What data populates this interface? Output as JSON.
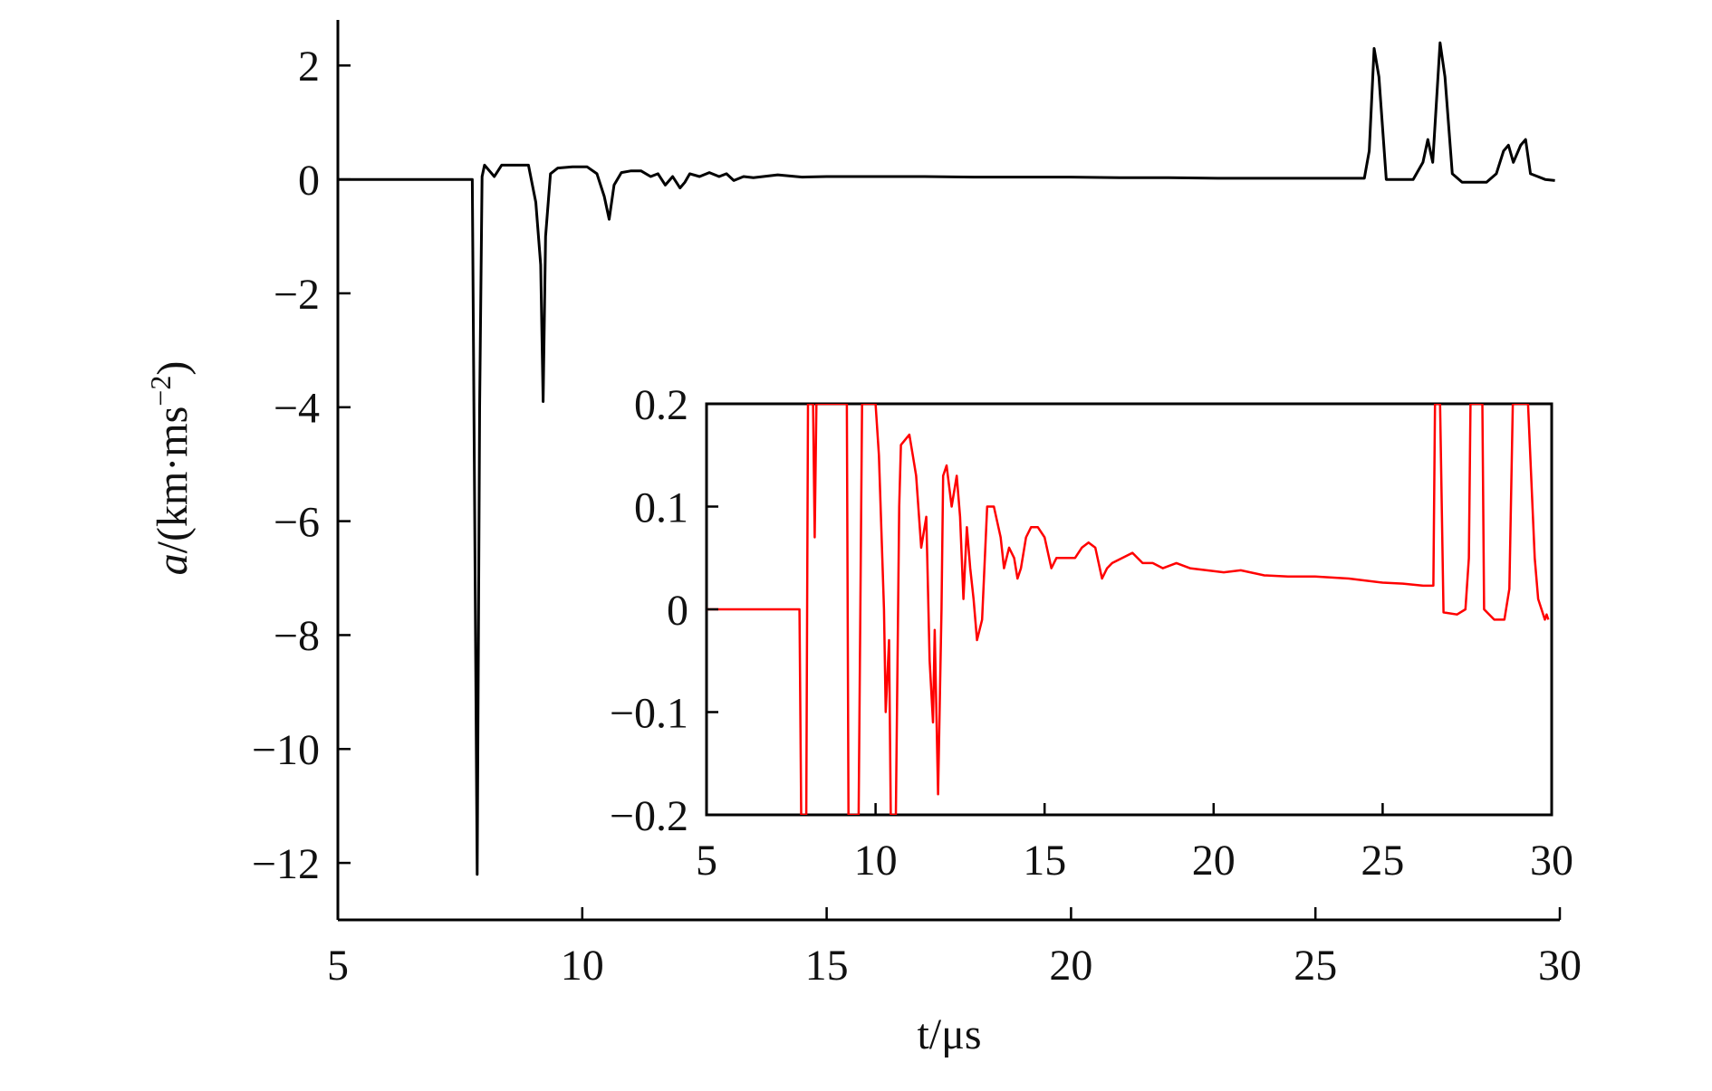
{
  "chart_data": [
    {
      "id": "main",
      "type": "line",
      "title": "",
      "xlabel": "t/μs",
      "ylabel": {
        "italic": "a",
        "rest": "/(km·ms",
        "sup": "−2",
        "close": ")"
      },
      "xlim": [
        5,
        30
      ],
      "ylim": [
        -13,
        2.8
      ],
      "xticks": [
        5,
        10,
        15,
        20,
        25,
        30
      ],
      "xtick_labels": [
        "5",
        "10",
        "15",
        "20",
        "25",
        "30"
      ],
      "yticks": [
        2,
        0,
        -2,
        -4,
        -6,
        -8,
        -10,
        -12
      ],
      "ytick_labels": [
        "2",
        "0",
        "−2",
        "−4",
        "−6",
        "−8",
        "−10",
        "−12"
      ],
      "grid": false,
      "series": [
        {
          "color": "#000000",
          "points": [
            [
              5,
              0
            ],
            [
              7.75,
              0
            ],
            [
              7.8,
              -6.0
            ],
            [
              7.85,
              -12.2
            ],
            [
              7.9,
              -4.0
            ],
            [
              7.95,
              0.05
            ],
            [
              8.0,
              0.25
            ],
            [
              8.1,
              0.15
            ],
            [
              8.2,
              0.05
            ],
            [
              8.35,
              0.25
            ],
            [
              8.6,
              0.25
            ],
            [
              8.9,
              0.25
            ],
            [
              9.05,
              -0.4
            ],
            [
              9.15,
              -1.5
            ],
            [
              9.2,
              -3.9
            ],
            [
              9.25,
              -1.0
            ],
            [
              9.35,
              0.1
            ],
            [
              9.5,
              0.2
            ],
            [
              9.8,
              0.22
            ],
            [
              10.1,
              0.22
            ],
            [
              10.3,
              0.1
            ],
            [
              10.45,
              -0.3
            ],
            [
              10.55,
              -0.7
            ],
            [
              10.65,
              -0.1
            ],
            [
              10.8,
              0.12
            ],
            [
              11.0,
              0.15
            ],
            [
              11.2,
              0.15
            ],
            [
              11.4,
              0.05
            ],
            [
              11.55,
              0.1
            ],
            [
              11.7,
              -0.1
            ],
            [
              11.85,
              0.05
            ],
            [
              12.0,
              -0.15
            ],
            [
              12.1,
              -0.05
            ],
            [
              12.2,
              0.1
            ],
            [
              12.4,
              0.05
            ],
            [
              12.6,
              0.12
            ],
            [
              12.8,
              0.05
            ],
            [
              12.95,
              0.1
            ],
            [
              13.1,
              -0.02
            ],
            [
              13.3,
              0.05
            ],
            [
              13.5,
              0.03
            ],
            [
              14.0,
              0.08
            ],
            [
              14.5,
              0.04
            ],
            [
              15,
              0.05
            ],
            [
              16,
              0.05
            ],
            [
              17,
              0.05
            ],
            [
              18,
              0.04
            ],
            [
              19,
              0.04
            ],
            [
              20,
              0.04
            ],
            [
              21,
              0.03
            ],
            [
              22,
              0.03
            ],
            [
              23,
              0.02
            ],
            [
              24,
              0.02
            ],
            [
              26.0,
              0.02
            ],
            [
              26.1,
              0.5
            ],
            [
              26.2,
              2.3
            ],
            [
              26.3,
              1.8
            ],
            [
              26.45,
              0.0
            ],
            [
              27.0,
              0.0
            ],
            [
              27.2,
              0.3
            ],
            [
              27.3,
              0.7
            ],
            [
              27.4,
              0.3
            ],
            [
              27.55,
              2.4
            ],
            [
              27.65,
              1.8
            ],
            [
              27.8,
              0.1
            ],
            [
              28.0,
              -0.05
            ],
            [
              28.5,
              -0.05
            ],
            [
              28.7,
              0.1
            ],
            [
              28.85,
              0.5
            ],
            [
              28.95,
              0.6
            ],
            [
              29.05,
              0.3
            ],
            [
              29.2,
              0.6
            ],
            [
              29.3,
              0.7
            ],
            [
              29.4,
              0.1
            ],
            [
              29.55,
              0.05
            ],
            [
              29.7,
              0.0
            ],
            [
              29.9,
              -0.02
            ]
          ]
        }
      ]
    },
    {
      "id": "inset",
      "type": "line",
      "title": "",
      "xlabel": "",
      "ylabel": "",
      "xlim": [
        5,
        30
      ],
      "ylim": [
        -0.2,
        0.2
      ],
      "xticks": [
        5,
        10,
        15,
        20,
        25,
        30
      ],
      "xtick_labels": [
        "5",
        "10",
        "15",
        "20",
        "25",
        "30"
      ],
      "yticks": [
        0.2,
        0.1,
        0,
        -0.1,
        -0.2
      ],
      "ytick_labels": [
        "0.2",
        "0.1",
        "0",
        "−0.1",
        "−0.2"
      ],
      "grid": false,
      "series": [
        {
          "color": "#ff0000",
          "points": [
            [
              5,
              0
            ],
            [
              7.75,
              0
            ],
            [
              7.8,
              -0.2
            ],
            [
              7.95,
              -0.2
            ],
            [
              8.0,
              0.2
            ],
            [
              8.15,
              0.2
            ],
            [
              8.2,
              0.07
            ],
            [
              8.25,
              0.2
            ],
            [
              8.3,
              0.2
            ],
            [
              9.15,
              0.2
            ],
            [
              9.2,
              -0.2
            ],
            [
              9.5,
              -0.2
            ],
            [
              9.6,
              0.2
            ],
            [
              10.0,
              0.2
            ],
            [
              10.1,
              0.15
            ],
            [
              10.25,
              0.0
            ],
            [
              10.3,
              -0.1
            ],
            [
              10.4,
              -0.03
            ],
            [
              10.45,
              -0.2
            ],
            [
              10.6,
              -0.2
            ],
            [
              10.7,
              0.1
            ],
            [
              10.75,
              0.16
            ],
            [
              11.0,
              0.17
            ],
            [
              11.1,
              0.15
            ],
            [
              11.2,
              0.13
            ],
            [
              11.35,
              0.06
            ],
            [
              11.5,
              0.09
            ],
            [
              11.6,
              -0.05
            ],
            [
              11.7,
              -0.11
            ],
            [
              11.75,
              -0.02
            ],
            [
              11.85,
              -0.18
            ],
            [
              11.95,
              0.0
            ],
            [
              12.0,
              0.13
            ],
            [
              12.1,
              0.14
            ],
            [
              12.25,
              0.1
            ],
            [
              12.4,
              0.13
            ],
            [
              12.5,
              0.09
            ],
            [
              12.6,
              0.01
            ],
            [
              12.7,
              0.08
            ],
            [
              12.8,
              0.04
            ],
            [
              12.9,
              0.01
            ],
            [
              13.0,
              -0.03
            ],
            [
              13.15,
              -0.01
            ],
            [
              13.3,
              0.1
            ],
            [
              13.5,
              0.1
            ],
            [
              13.7,
              0.07
            ],
            [
              13.8,
              0.04
            ],
            [
              13.95,
              0.06
            ],
            [
              14.1,
              0.05
            ],
            [
              14.2,
              0.03
            ],
            [
              14.3,
              0.04
            ],
            [
              14.45,
              0.07
            ],
            [
              14.6,
              0.08
            ],
            [
              14.8,
              0.08
            ],
            [
              15.0,
              0.07
            ],
            [
              15.2,
              0.04
            ],
            [
              15.35,
              0.05
            ],
            [
              15.6,
              0.05
            ],
            [
              15.9,
              0.05
            ],
            [
              16.1,
              0.06
            ],
            [
              16.3,
              0.065
            ],
            [
              16.5,
              0.06
            ],
            [
              16.7,
              0.03
            ],
            [
              16.85,
              0.04
            ],
            [
              17.0,
              0.045
            ],
            [
              17.3,
              0.05
            ],
            [
              17.6,
              0.055
            ],
            [
              17.9,
              0.045
            ],
            [
              18.2,
              0.045
            ],
            [
              18.5,
              0.04
            ],
            [
              18.9,
              0.045
            ],
            [
              19.3,
              0.04
            ],
            [
              19.8,
              0.038
            ],
            [
              20.3,
              0.036
            ],
            [
              20.8,
              0.038
            ],
            [
              21.5,
              0.033
            ],
            [
              22.2,
              0.032
            ],
            [
              23.0,
              0.032
            ],
            [
              24.0,
              0.03
            ],
            [
              25.0,
              0.026
            ],
            [
              25.6,
              0.025
            ],
            [
              26.2,
              0.023
            ],
            [
              26.5,
              0.023
            ],
            [
              26.55,
              0.2
            ],
            [
              26.7,
              0.2
            ],
            [
              26.8,
              -0.003
            ],
            [
              27.2,
              -0.005
            ],
            [
              27.45,
              0.0
            ],
            [
              27.55,
              0.05
            ],
            [
              27.6,
              0.2
            ],
            [
              27.95,
              0.2
            ],
            [
              28.0,
              0.0
            ],
            [
              28.3,
              -0.01
            ],
            [
              28.6,
              -0.01
            ],
            [
              28.75,
              0.02
            ],
            [
              28.85,
              0.2
            ],
            [
              29.3,
              0.2
            ],
            [
              29.5,
              0.05
            ],
            [
              29.6,
              0.01
            ],
            [
              29.7,
              0.0
            ],
            [
              29.8,
              -0.01
            ],
            [
              29.85,
              -0.005
            ],
            [
              29.9,
              -0.01
            ]
          ]
        }
      ]
    }
  ]
}
